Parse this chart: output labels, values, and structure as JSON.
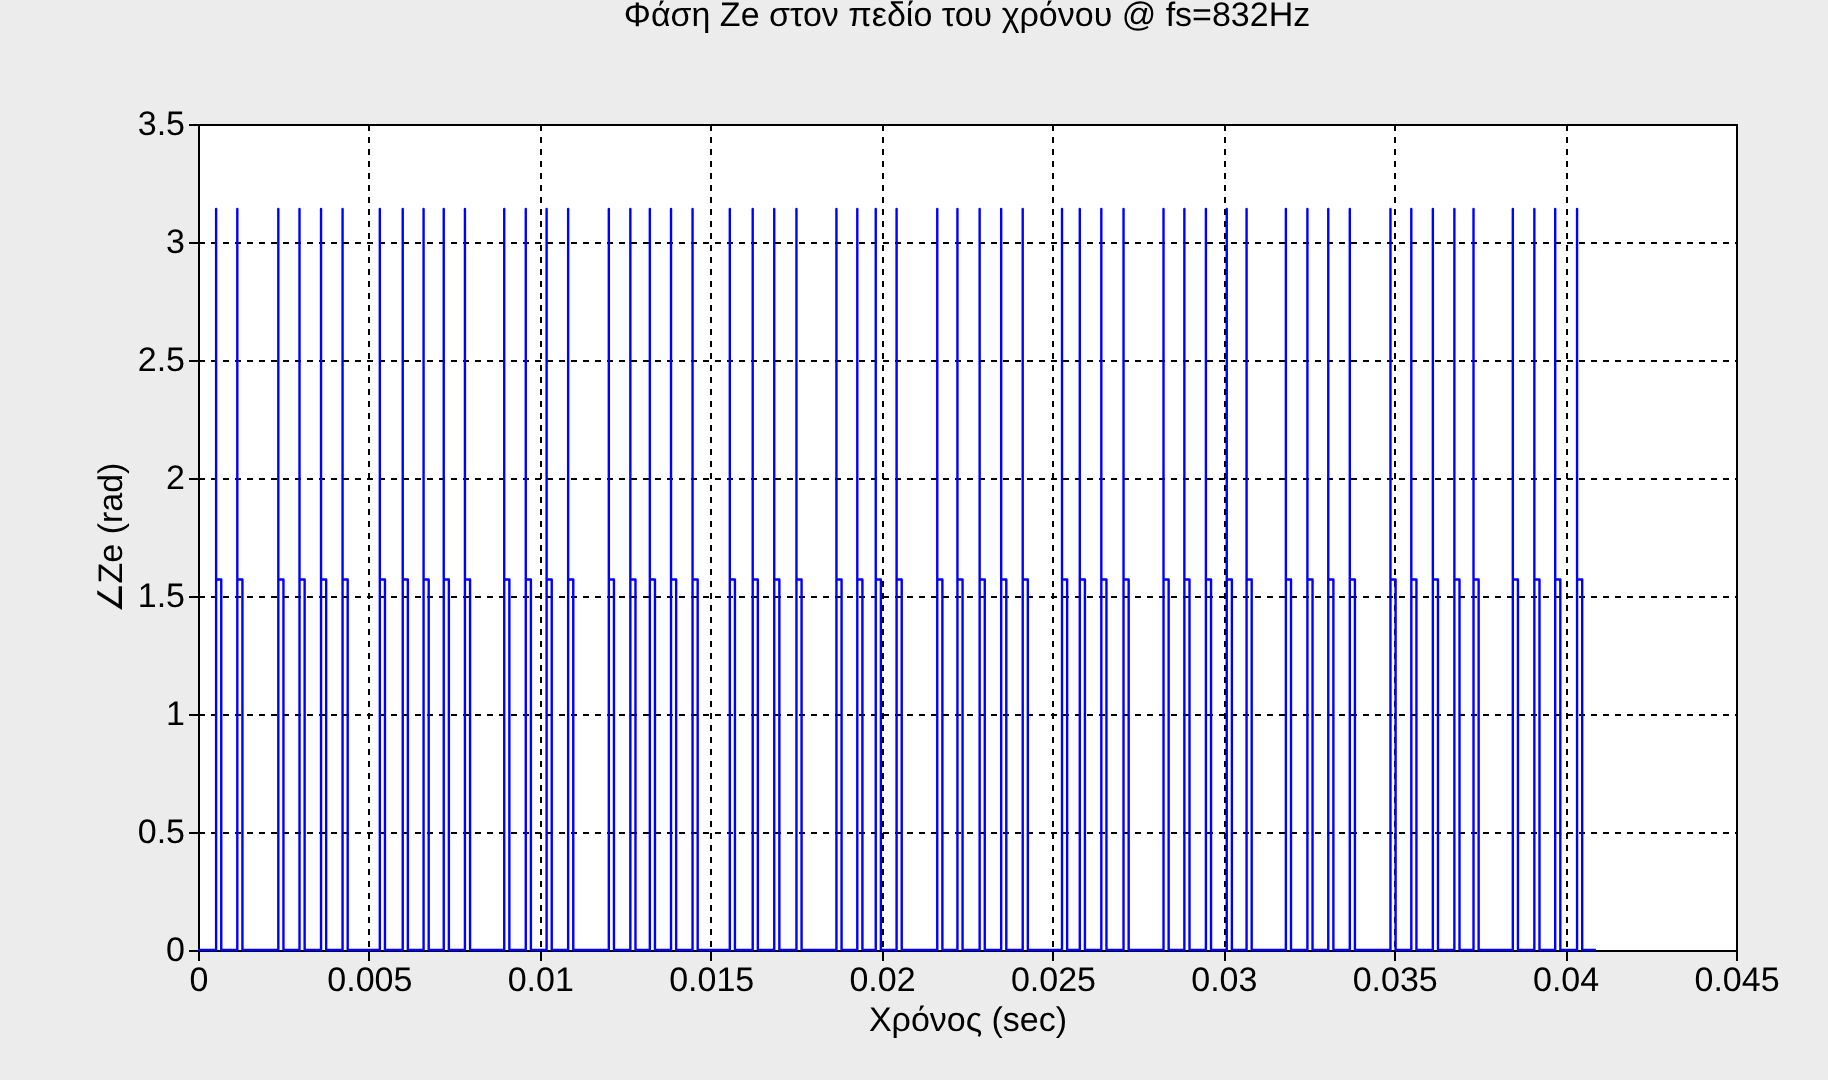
{
  "chart_data": {
    "type": "line",
    "title": "Φάση Ze στον πεδίο του χρόνου @ fs=832Hz",
    "xlabel": "Χρόνος (sec)",
    "ylabel": "∠Ze (rad)",
    "xlim": [
      0,
      0.045
    ],
    "xticks": [
      0,
      0.005,
      0.01,
      0.015,
      0.02,
      0.025,
      0.03,
      0.035,
      0.04,
      0.045
    ],
    "ylim": [
      0,
      3.5
    ],
    "yticks": [
      0,
      0.5,
      1,
      1.5,
      2,
      2.5,
      3,
      3.5
    ],
    "grid": true,
    "marker": "none",
    "line_style": "solid",
    "series": [
      {
        "color": "#0000ff",
        "x": [
          0,
          0.00053,
          0.00053,
          0.00053,
          0.00068,
          0.00068,
          0.00115,
          0.00115,
          0.00115,
          0.0013,
          0.0013,
          0.00235,
          0.00235,
          0.00235,
          0.0025,
          0.0025,
          0.00297,
          0.00297,
          0.00297,
          0.00312,
          0.00312,
          0.0036,
          0.0036,
          0.0036,
          0.00375,
          0.00375,
          0.00423,
          0.00423,
          0.00423,
          0.00438,
          0.00438,
          0.00532,
          0.00532,
          0.00532,
          0.00547,
          0.00547,
          0.00599,
          0.00599,
          0.00599,
          0.00614,
          0.00614,
          0.0066,
          0.0066,
          0.0066,
          0.00675,
          0.00675,
          0.00719,
          0.00719,
          0.00719,
          0.00734,
          0.00734,
          0.00781,
          0.00781,
          0.00781,
          0.00796,
          0.00796,
          0.00896,
          0.00896,
          0.00896,
          0.00911,
          0.00911,
          0.00959,
          0.00959,
          0.00959,
          0.00974,
          0.00974,
          0.0102,
          0.0102,
          0.0102,
          0.01035,
          0.01035,
          0.01083,
          0.01083,
          0.01083,
          0.01098,
          0.01098,
          0.01202,
          0.01202,
          0.01202,
          0.01217,
          0.01217,
          0.01265,
          0.01265,
          0.01265,
          0.0128,
          0.0128,
          0.01322,
          0.01322,
          0.01322,
          0.01337,
          0.01337,
          0.01384,
          0.01384,
          0.01384,
          0.01399,
          0.01399,
          0.01447,
          0.01447,
          0.01447,
          0.01462,
          0.01462,
          0.01556,
          0.01556,
          0.01556,
          0.01571,
          0.01571,
          0.01623,
          0.01623,
          0.01623,
          0.01638,
          0.01638,
          0.01686,
          0.01686,
          0.01686,
          0.01701,
          0.01701,
          0.01751,
          0.01751,
          0.01751,
          0.01766,
          0.01766,
          0.01868,
          0.01868,
          0.01868,
          0.01883,
          0.01883,
          0.01929,
          0.01929,
          0.01929,
          0.01944,
          0.01944,
          0.01983,
          0.01983,
          0.01983,
          0.01998,
          0.01998,
          0.02044,
          0.02044,
          0.02044,
          0.02059,
          0.02059,
          0.02163,
          0.02163,
          0.02163,
          0.02178,
          0.02178,
          0.02222,
          0.02222,
          0.02222,
          0.02237,
          0.02237,
          0.02287,
          0.02287,
          0.02287,
          0.02302,
          0.02302,
          0.0235,
          0.0235,
          0.0235,
          0.02365,
          0.02365,
          0.02413,
          0.02413,
          0.02413,
          0.02428,
          0.02428,
          0.02528,
          0.02528,
          0.02528,
          0.02543,
          0.02543,
          0.0258,
          0.0258,
          0.0258,
          0.02595,
          0.02595,
          0.02643,
          0.02643,
          0.02643,
          0.02658,
          0.02658,
          0.02708,
          0.02708,
          0.02708,
          0.02723,
          0.02723,
          0.02825,
          0.02825,
          0.02825,
          0.0284,
          0.0284,
          0.02886,
          0.02886,
          0.02886,
          0.02901,
          0.02901,
          0.02949,
          0.02949,
          0.02949,
          0.02964,
          0.02964,
          0.0301,
          0.0301,
          0.0301,
          0.03025,
          0.03025,
          0.03068,
          0.03068,
          0.03068,
          0.03083,
          0.03083,
          0.03183,
          0.03183,
          0.03183,
          0.03198,
          0.03198,
          0.03246,
          0.03246,
          0.03246,
          0.03261,
          0.03261,
          0.03307,
          0.03307,
          0.03307,
          0.03322,
          0.03322,
          0.0337,
          0.0337,
          0.0337,
          0.03385,
          0.03385,
          0.03489,
          0.03489,
          0.03489,
          0.03504,
          0.03504,
          0.0355,
          0.0355,
          0.0355,
          0.03565,
          0.03565,
          0.03613,
          0.03613,
          0.03613,
          0.03628,
          0.03628,
          0.03676,
          0.03676,
          0.03676,
          0.03691,
          0.03691,
          0.03732,
          0.03732,
          0.03732,
          0.03747,
          0.03747,
          0.03847,
          0.03847,
          0.03847,
          0.03862,
          0.03862,
          0.0391,
          0.0391,
          0.0391,
          0.03925,
          0.03925,
          0.03971,
          0.03971,
          0.03971,
          0.03986,
          0.03986,
          0.04035,
          0.04035,
          0.04035,
          0.0405,
          0.0405,
          0.0409
        ],
        "values": [
          0,
          0,
          3.14,
          1.57,
          1.57,
          0,
          0,
          3.14,
          1.57,
          1.57,
          0,
          0,
          3.14,
          1.57,
          1.57,
          0,
          0,
          3.14,
          1.57,
          1.57,
          0,
          0,
          3.14,
          1.57,
          1.57,
          0,
          0,
          3.14,
          1.57,
          1.57,
          0,
          0,
          3.14,
          1.57,
          1.57,
          0,
          0,
          3.14,
          1.57,
          1.57,
          0,
          0,
          3.14,
          1.57,
          1.57,
          0,
          0,
          3.14,
          1.57,
          1.57,
          0,
          0,
          3.14,
          1.57,
          1.57,
          0,
          0,
          3.14,
          1.57,
          1.57,
          0,
          0,
          3.14,
          1.57,
          1.57,
          0,
          0,
          3.14,
          1.57,
          1.57,
          0,
          0,
          3.14,
          1.57,
          1.57,
          0,
          0,
          3.14,
          1.57,
          1.57,
          0,
          0,
          3.14,
          1.57,
          1.57,
          0,
          0,
          3.14,
          1.57,
          1.57,
          0,
          0,
          3.14,
          1.57,
          1.57,
          0,
          0,
          3.14,
          1.57,
          1.57,
          0,
          0,
          3.14,
          1.57,
          1.57,
          0,
          0,
          3.14,
          1.57,
          1.57,
          0,
          0,
          3.14,
          1.57,
          1.57,
          0,
          0,
          3.14,
          1.57,
          1.57,
          0,
          0,
          3.14,
          1.57,
          1.57,
          0,
          0,
          3.14,
          1.57,
          1.57,
          0,
          0,
          3.14,
          1.57,
          1.57,
          0,
          0,
          3.14,
          1.57,
          1.57,
          0,
          0,
          3.14,
          1.57,
          1.57,
          0,
          0,
          3.14,
          1.57,
          1.57,
          0,
          0,
          3.14,
          1.57,
          1.57,
          0,
          0,
          3.14,
          1.57,
          1.57,
          0,
          0,
          3.14,
          1.57,
          1.57,
          0,
          0,
          3.14,
          1.57,
          1.57,
          0,
          0,
          3.14,
          1.57,
          1.57,
          0,
          0,
          3.14,
          1.57,
          1.57,
          0,
          0,
          3.14,
          1.57,
          1.57,
          0,
          0,
          3.14,
          1.57,
          1.57,
          0,
          0,
          3.14,
          1.57,
          1.57,
          0,
          0,
          3.14,
          1.57,
          1.57,
          0,
          0,
          3.14,
          1.57,
          1.57,
          0,
          0,
          3.14,
          1.57,
          1.57,
          0,
          0,
          3.14,
          1.57,
          1.57,
          0,
          0,
          3.14,
          1.57,
          1.57,
          0,
          0,
          3.14,
          1.57,
          1.57,
          0,
          0,
          3.14,
          1.57,
          1.57,
          0,
          0,
          3.14,
          1.57,
          1.57,
          0,
          0,
          3.14,
          1.57,
          1.57,
          0,
          0,
          3.14,
          1.57,
          1.57,
          0,
          0,
          3.14,
          1.57,
          1.57,
          0,
          0,
          3.14,
          1.57,
          1.57,
          0,
          0,
          3.14,
          1.57,
          1.57,
          0,
          0,
          3.14,
          1.57,
          1.57,
          0,
          0,
          3.14,
          1.57,
          1.57,
          0,
          0,
          3.14,
          1.57,
          1.57,
          0,
          0
        ]
      }
    ]
  }
}
